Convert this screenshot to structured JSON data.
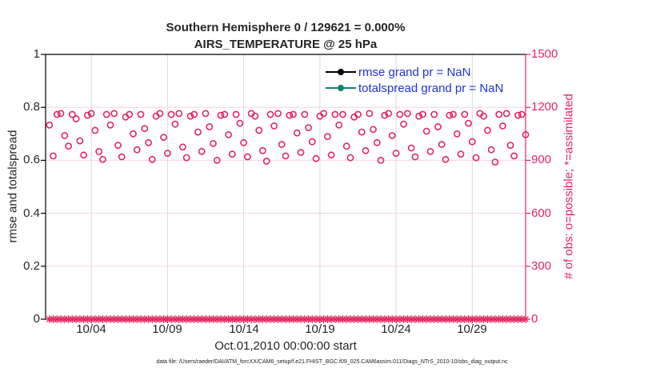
{
  "figure": {
    "title_line1": "Southern Hemisphere 0 / 129621 = 0.000%",
    "title_line2": "AIRS_TEMPERATURE @ 25 hPa",
    "xlabel": "Oct.01,2010 00:00:00 start",
    "ylabel_left": "rmse and totalspread",
    "ylabel_right": "# of obs: o=possible; *=assimilated",
    "caption": "data file: /Users/raeder/DAI/ATM_forcXX/CAM6_setup/f.e21.FHIST_BGC.f09_025.CAM6assim.011/Diags_NTrS_2010-10/obs_diag_output.nc"
  },
  "legend": {
    "entries": [
      {
        "label": "rmse grand pr = NaN",
        "color": "#000000"
      },
      {
        "label": "totalspread grand pr = NaN",
        "color": "#0e8577"
      }
    ],
    "text_color": "#2133d8",
    "position": "upper-right-inside",
    "box": false
  },
  "colors": {
    "pink": "#e2265f",
    "teal": "#0e8577",
    "legend_text": "#2133d8",
    "grid_pink": "#f7d4e2",
    "grid_gray": "#d9d9d9",
    "axis": "#000000",
    "tick_text": "#262626"
  },
  "chart_data": {
    "type": "scatter",
    "title": "Southern Hemisphere 0 / 129621 = 0.000% | AIRS_TEMPERATURE @ 25 hPa",
    "xlabel": "Oct.01,2010 00:00:00 start",
    "ylabel_left": "rmse and totalspread",
    "ylabel_right": "# of obs: o=possible; *=assimilated",
    "grid": true,
    "xlim_days": [
      0,
      31.5
    ],
    "ylim_left": [
      0,
      1
    ],
    "ylim_right": [
      0,
      1500
    ],
    "x_tick_days": [
      3,
      8,
      13,
      18,
      23,
      28
    ],
    "x_tick_labels": [
      "10/04",
      "10/09",
      "10/14",
      "10/19",
      "10/24",
      "10/29"
    ],
    "y_left_ticks": [
      0,
      0.2,
      0.4,
      0.6,
      0.8,
      1
    ],
    "y_right_ticks": [
      0,
      300,
      600,
      900,
      1200,
      1500
    ],
    "gridline_values_right": [
      300,
      600,
      900,
      1200
    ],
    "series": [
      {
        "name": "possible obs",
        "marker": "o",
        "color": "#e2265f",
        "yaxis": "right",
        "x_start_day": 0.25,
        "x_step_days": 0.25,
        "values": [
          1100,
          925,
          1160,
          1165,
          1040,
          980,
          1160,
          1135,
          1010,
          930,
          1155,
          1165,
          1070,
          950,
          905,
          1160,
          1100,
          1165,
          985,
          920,
          1145,
          1160,
          1050,
          960,
          1160,
          1080,
          1000,
          905,
          1150,
          1165,
          1030,
          940,
          1160,
          1105,
          1165,
          975,
          915,
          1150,
          1160,
          1060,
          950,
          1165,
          1090,
          995,
          900,
          1155,
          1160,
          1045,
          935,
          1160,
          1110,
          1000,
          920,
          1165,
          1150,
          1070,
          955,
          895,
          1160,
          1095,
          1165,
          990,
          925,
          1155,
          1160,
          1055,
          945,
          1160,
          1085,
          1005,
          910,
          1150,
          1165,
          1035,
          930,
          1160,
          1100,
          1160,
          980,
          915,
          1145,
          1160,
          1060,
          955,
          1165,
          1075,
          1000,
          900,
          1155,
          1165,
          1040,
          940,
          1160,
          1105,
          1165,
          970,
          920,
          1150,
          1160,
          1065,
          950,
          1160,
          1090,
          990,
          905,
          1155,
          1160,
          1050,
          935,
          1160,
          1110,
          1005,
          915,
          1165,
          1150,
          1070,
          960,
          890,
          1160,
          1095,
          1165,
          985,
          925,
          1155,
          1160,
          1045
        ]
      },
      {
        "name": "assimilated obs",
        "marker": "*",
        "color": "#e2265f",
        "yaxis": "right",
        "x_start_day": 0.25,
        "x_step_days": 0.25,
        "constant_value": 0,
        "count": 126
      },
      {
        "name": "rmse",
        "color": "#000000",
        "grand_pr": "NaN"
      },
      {
        "name": "totalspread",
        "color": "#0e8577",
        "grand_pr": "NaN"
      }
    ]
  }
}
